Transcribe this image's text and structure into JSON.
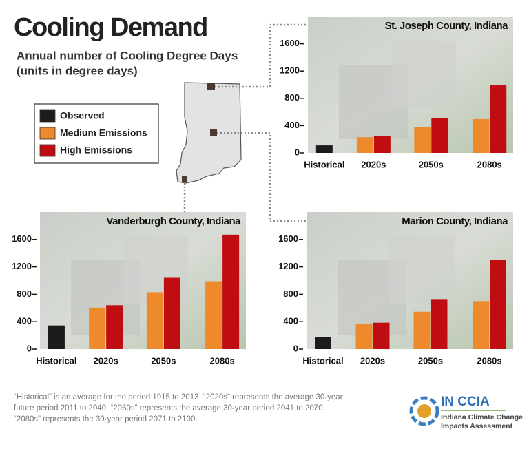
{
  "header": {
    "title": "Cooling Demand",
    "subtitle": [
      "Annual number of Cooling Degree Days",
      "(units in degree days)"
    ]
  },
  "chart_data": [
    {
      "type": "bar",
      "title": "St. Joseph County, Indiana",
      "categories": [
        "Historical",
        "2020s",
        "2050s",
        "2080s"
      ],
      "series": [
        {
          "name": "Observed",
          "color": "#1c1c1c",
          "values": [
            110,
            null,
            null,
            null
          ]
        },
        {
          "name": "Medium Emissions",
          "color": "#ee8a2c",
          "values": [
            null,
            230,
            380,
            495
          ]
        },
        {
          "name": "High Emissions",
          "color": "#c00d12",
          "values": [
            null,
            250,
            505,
            1000
          ]
        }
      ],
      "ylim": [
        0,
        2000
      ],
      "yticks": [
        0,
        400,
        800,
        1200,
        1600
      ]
    },
    {
      "type": "bar",
      "title": "Vanderburgh County, Indiana",
      "categories": [
        "Historical",
        "2020s",
        "2050s",
        "2080s"
      ],
      "series": [
        {
          "name": "Observed",
          "color": "#1c1c1c",
          "values": [
            345,
            null,
            null,
            null
          ]
        },
        {
          "name": "Medium Emissions",
          "color": "#ee8a2c",
          "values": [
            null,
            605,
            830,
            990
          ]
        },
        {
          "name": "High Emissions",
          "color": "#c00d12",
          "values": [
            null,
            640,
            1040,
            1670
          ]
        }
      ],
      "ylim": [
        0,
        2000
      ],
      "yticks": [
        0,
        400,
        800,
        1200,
        1600
      ]
    },
    {
      "type": "bar",
      "title": "Marion County, Indiana",
      "categories": [
        "Historical",
        "2020s",
        "2050s",
        "2080s"
      ],
      "series": [
        {
          "name": "Observed",
          "color": "#1c1c1c",
          "values": [
            180,
            null,
            null,
            null
          ]
        },
        {
          "name": "Medium Emissions",
          "color": "#ee8a2c",
          "values": [
            null,
            365,
            545,
            700
          ]
        },
        {
          "name": "High Emissions",
          "color": "#c00d12",
          "values": [
            null,
            385,
            730,
            1305
          ]
        }
      ],
      "ylim": [
        0,
        2000
      ],
      "yticks": [
        0,
        400,
        800,
        1200,
        1600
      ]
    }
  ],
  "footnote": [
    "“Historical” is an average for the period 1915 to 2013. “2020s” represents the average 30-year",
    "future period 2011 to 2040. “2050s” represents the average 30-year period 2041 to 2070.",
    "“2080s” represents the 30-year period 2071 to 2100."
  ],
  "logo": {
    "name": "IN CCIA",
    "text": [
      "Indiana Climate Change",
      "Impacts Assessment"
    ]
  }
}
